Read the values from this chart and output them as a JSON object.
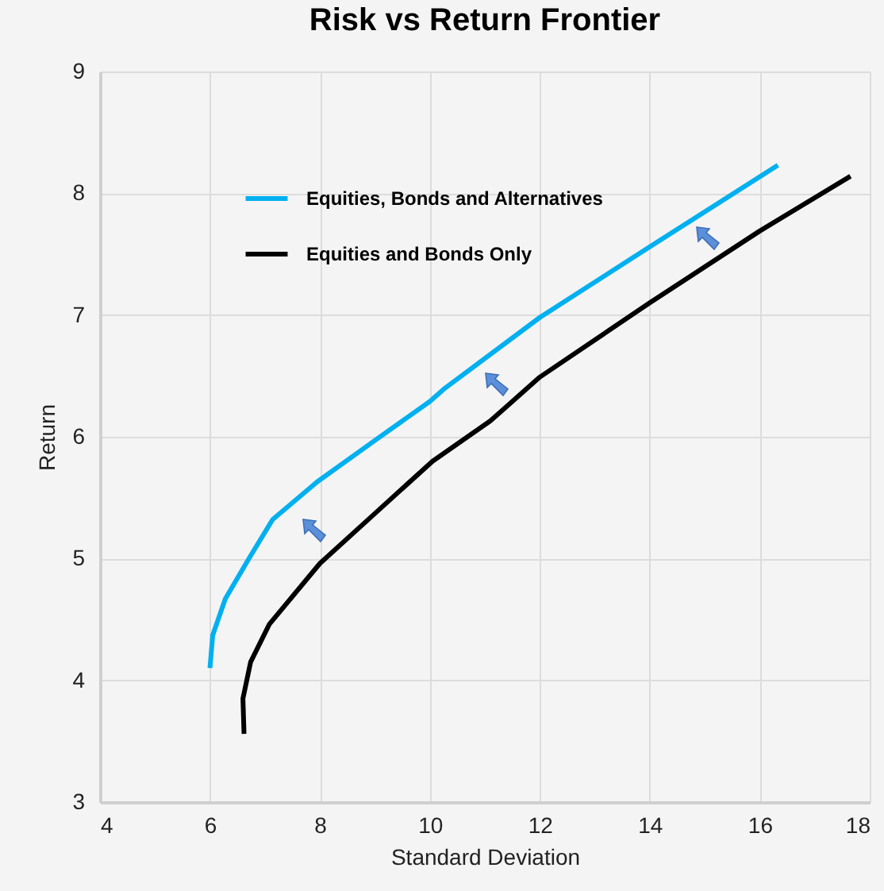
{
  "chart_data": {
    "type": "line",
    "title": "Risk vs Return Frontier",
    "xlabel": "Standard Deviation",
    "ylabel": "Return",
    "xlim": [
      4,
      18
    ],
    "xticks": [
      4,
      6,
      8,
      10,
      12,
      14,
      16,
      18
    ],
    "ylim": [
      3,
      9
    ],
    "yticks": [
      3,
      4,
      5,
      6,
      7,
      8,
      9
    ],
    "grid": true,
    "legend": "top left",
    "marker": "none",
    "line_style": "solid",
    "series": [
      {
        "name": "Equities, Bonds and Alternatives",
        "color": "#00b0f0",
        "x": [
          6.0,
          6.05,
          6.28,
          6.71,
          7.14,
          7.95,
          9.0,
          10.0,
          10.25,
          12.0,
          14.0,
          16.33
        ],
        "values": [
          4.1,
          4.37,
          4.67,
          5.0,
          5.32,
          5.63,
          5.97,
          6.29,
          6.39,
          6.98,
          7.56,
          8.23
        ]
      },
      {
        "name": "Equities and Bonds Only",
        "color": "#000000",
        "x": [
          6.62,
          6.6,
          6.74,
          7.08,
          8.0,
          9.0,
          10.05,
          11.1,
          12.0,
          14.0,
          16.0,
          17.65
        ],
        "values": [
          3.56,
          3.85,
          4.15,
          4.46,
          4.96,
          5.37,
          5.8,
          6.13,
          6.49,
          7.1,
          7.69,
          8.14
        ]
      }
    ]
  }
}
